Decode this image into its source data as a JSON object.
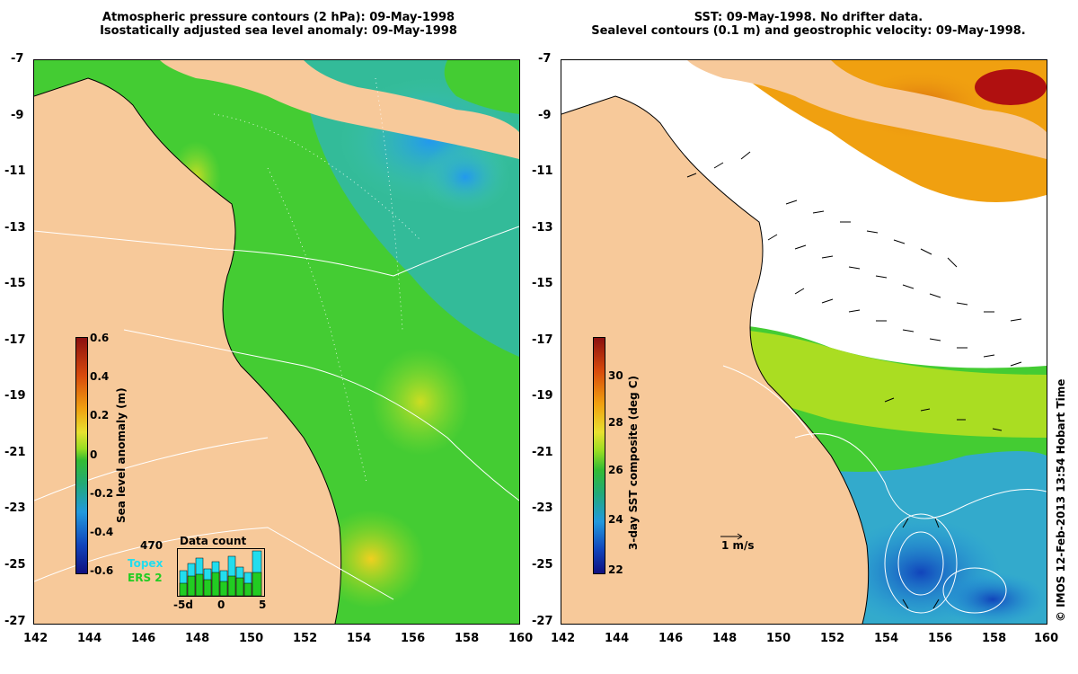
{
  "left_panel": {
    "title_line1": "Atmospheric pressure contours (2 hPa): 09-May-1998",
    "title_line2": "Isostatically adjusted sea level anomaly: 09-May-1998",
    "colorbar": {
      "label": "Sea level anomaly (m)",
      "ticks": [
        "0.6",
        "0.4",
        "0.2",
        "0",
        "-0.2",
        "-0.4",
        "-0.6"
      ]
    },
    "inset": {
      "title": "Data count",
      "max_label": "470",
      "series": [
        "Topex",
        "ERS 2"
      ],
      "xticks": [
        "-5d",
        "0",
        "5"
      ],
      "topex_color": "#22ddee",
      "ers_color": "#22cc22"
    }
  },
  "right_panel": {
    "title_line1": "SST: 09-May-1998. No drifter data.",
    "title_line2": "Sealevel contours (0.1 m) and geostrophic velocity: 09-May-1998.",
    "colorbar": {
      "label": "3-day SST composite (deg C)",
      "ticks": [
        "30",
        "28",
        "26",
        "24",
        "22"
      ]
    },
    "scale_label": "1 m/s"
  },
  "axes": {
    "y_ticks": [
      "-7",
      "-9",
      "-11",
      "-13",
      "-15",
      "-17",
      "-19",
      "-21",
      "-23",
      "-25",
      "-27"
    ],
    "x_ticks": [
      "142",
      "144",
      "146",
      "148",
      "150",
      "152",
      "154",
      "156",
      "158",
      "160"
    ]
  },
  "credit": "© IMOS 12-Feb-2013 13:54 Hobart Time",
  "colors": {
    "land": "#f7c99a",
    "ocean_green": "#44cc33",
    "no_data": "#ffffff"
  }
}
